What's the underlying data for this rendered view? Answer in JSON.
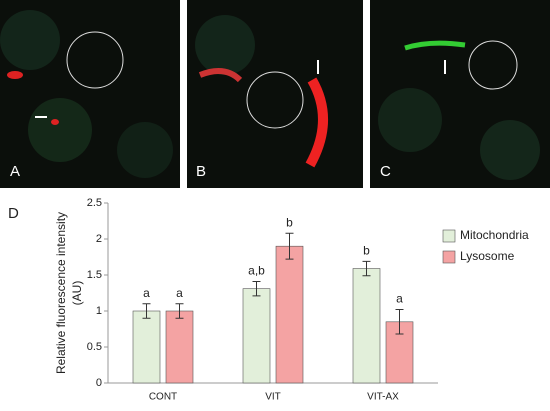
{
  "panels": [
    "A",
    "B",
    "C"
  ],
  "panel_label": "D",
  "chart_data": {
    "type": "bar",
    "ylabel": [
      "Relative fluorescence intensity",
      "(AU)"
    ],
    "categories": [
      "CONT",
      "VIT",
      "VIT-AX"
    ],
    "series": [
      {
        "name": "Mitochondria",
        "color": "#e2efda",
        "values": [
          1.0,
          1.31,
          1.59
        ],
        "errors": [
          0.1,
          0.1,
          0.1
        ],
        "labels": [
          "a",
          "a,b",
          "b"
        ]
      },
      {
        "name": "Lysosome",
        "color": "#f4a3a3",
        "values": [
          1.0,
          1.9,
          0.85
        ],
        "errors": [
          0.1,
          0.18,
          0.17
        ],
        "labels": [
          "a",
          "b",
          "a"
        ]
      }
    ],
    "ylim": [
      0,
      2.5
    ],
    "yticks": [
      0,
      0.5,
      1,
      1.5,
      2,
      2.5
    ],
    "grid": false,
    "legend": "right"
  }
}
